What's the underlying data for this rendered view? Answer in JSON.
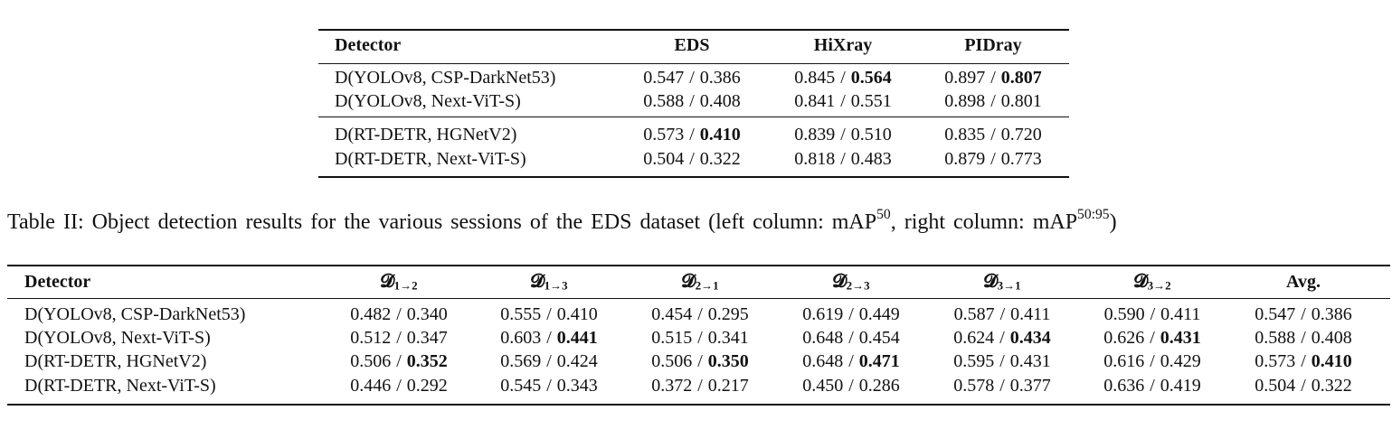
{
  "separator": "/",
  "table1": {
    "header": [
      "Detector",
      "EDS",
      "HiXray",
      "PIDray"
    ],
    "rows": [
      {
        "detector": "D(YOLOv8, CSP-DarkNet53)",
        "cells": [
          [
            "0.547",
            "0.386"
          ],
          [
            "0.845",
            "0.564"
          ],
          [
            "0.897",
            "0.807"
          ]
        ]
      },
      {
        "detector": "D(YOLOv8, Next-ViT-S)",
        "cells": [
          [
            "0.588",
            "0.408"
          ],
          [
            "0.841",
            "0.551"
          ],
          [
            "0.898",
            "0.801"
          ]
        ]
      },
      {
        "detector": "D(RT-DETR, HGNetV2)",
        "cells": [
          [
            "0.573",
            "0.410"
          ],
          [
            "0.839",
            "0.510"
          ],
          [
            "0.835",
            "0.720"
          ]
        ]
      },
      {
        "detector": "D(RT-DETR, Next-ViT-S)",
        "cells": [
          [
            "0.504",
            "0.322"
          ],
          [
            "0.818",
            "0.483"
          ],
          [
            "0.879",
            "0.773"
          ]
        ]
      }
    ],
    "bold": [
      [
        0,
        1,
        1
      ],
      [
        0,
        2,
        1
      ],
      [
        2,
        0,
        1
      ]
    ]
  },
  "caption": [
    {
      "text": "Table II: Object detection results for the various sessions of the EDS dataset (left column: mAP"
    },
    {
      "sup": "50"
    },
    {
      "text": ", right column: mAP"
    },
    {
      "sup": "50:95"
    },
    {
      "text": ")"
    }
  ],
  "table2": {
    "header": [
      {
        "text": "Detector"
      },
      {
        "symbol": "𝓓",
        "sub": "1→2"
      },
      {
        "symbol": "𝓓",
        "sub": "1→3"
      },
      {
        "symbol": "𝓓",
        "sub": "2→1"
      },
      {
        "symbol": "𝓓",
        "sub": "2→3"
      },
      {
        "symbol": "𝓓",
        "sub": "3→1"
      },
      {
        "symbol": "𝓓",
        "sub": "3→2"
      },
      {
        "text": "Avg."
      }
    ],
    "rows": [
      {
        "detector": "D(YOLOv8, CSP-DarkNet53)",
        "cells": [
          [
            "0.482",
            "0.340"
          ],
          [
            "0.555",
            "0.410"
          ],
          [
            "0.454",
            "0.295"
          ],
          [
            "0.619",
            "0.449"
          ],
          [
            "0.587",
            "0.411"
          ],
          [
            "0.590",
            "0.411"
          ],
          [
            "0.547",
            "0.386"
          ]
        ]
      },
      {
        "detector": "D(YOLOv8, Next-ViT-S)",
        "cells": [
          [
            "0.512",
            "0.347"
          ],
          [
            "0.603",
            "0.441"
          ],
          [
            "0.515",
            "0.341"
          ],
          [
            "0.648",
            "0.454"
          ],
          [
            "0.624",
            "0.434"
          ],
          [
            "0.626",
            "0.431"
          ],
          [
            "0.588",
            "0.408"
          ]
        ]
      },
      {
        "detector": "D(RT-DETR, HGNetV2)",
        "cells": [
          [
            "0.506",
            "0.352"
          ],
          [
            "0.569",
            "0.424"
          ],
          [
            "0.506",
            "0.350"
          ],
          [
            "0.648",
            "0.471"
          ],
          [
            "0.595",
            "0.431"
          ],
          [
            "0.616",
            "0.429"
          ],
          [
            "0.573",
            "0.410"
          ]
        ]
      },
      {
        "detector": "D(RT-DETR, Next-ViT-S)",
        "cells": [
          [
            "0.446",
            "0.292"
          ],
          [
            "0.545",
            "0.343"
          ],
          [
            "0.372",
            "0.217"
          ],
          [
            "0.450",
            "0.286"
          ],
          [
            "0.578",
            "0.377"
          ],
          [
            "0.636",
            "0.419"
          ],
          [
            "0.504",
            "0.322"
          ]
        ]
      }
    ],
    "bold": [
      [
        1,
        1,
        1
      ],
      [
        1,
        4,
        1
      ],
      [
        1,
        5,
        1
      ],
      [
        2,
        0,
        1
      ],
      [
        2,
        2,
        1
      ],
      [
        2,
        3,
        1
      ],
      [
        2,
        6,
        1
      ]
    ]
  }
}
